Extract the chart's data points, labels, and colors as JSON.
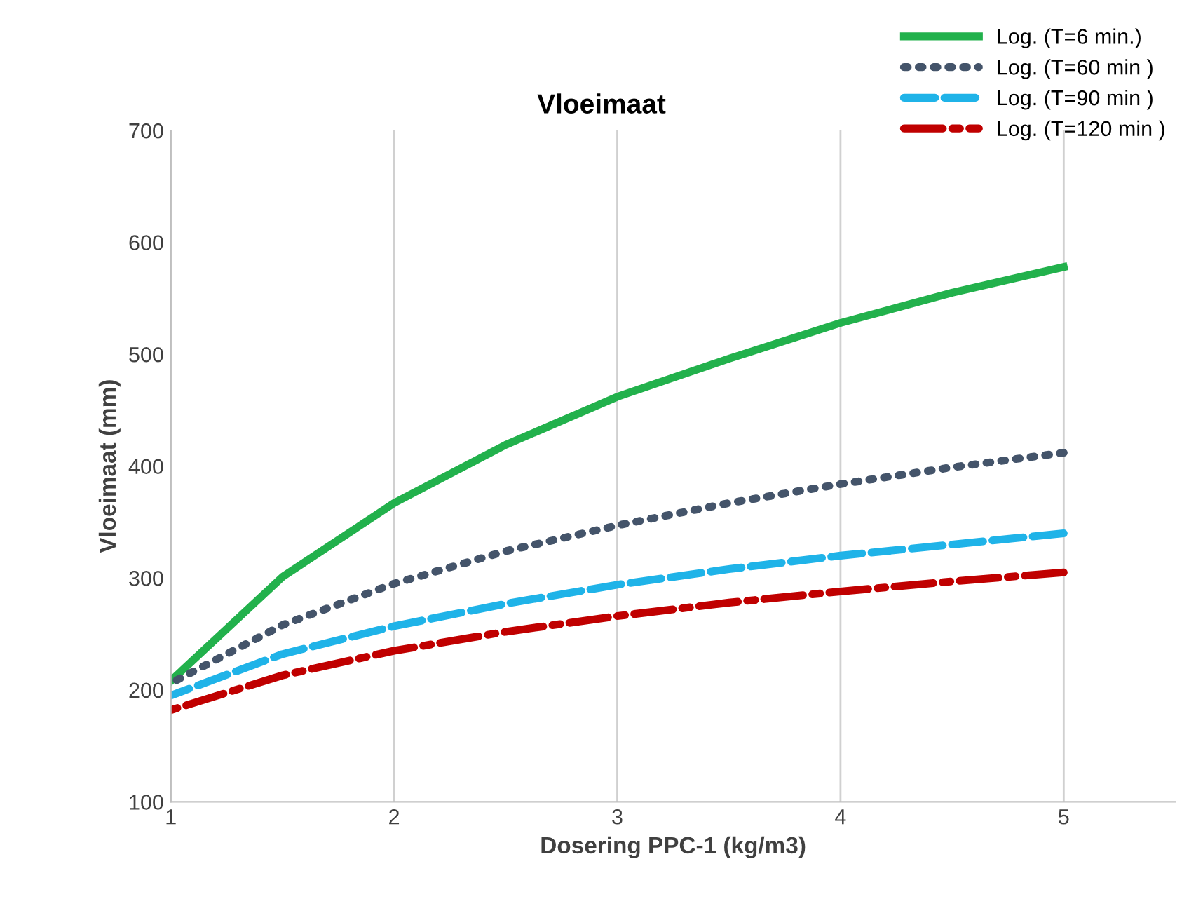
{
  "chart_data": {
    "type": "line",
    "title": "Vloeimaat",
    "xlabel": "Dosering PPC-1 (kg/m3)",
    "ylabel": "Vloeimaat (mm)",
    "x": [
      1,
      1.5,
      2,
      2.5,
      3,
      3.5,
      4,
      4.5,
      5
    ],
    "series": [
      {
        "name": "Log. (T=6 min.)",
        "color": "#22b14c",
        "line_style": "solid",
        "values": [
          208,
          301,
          367,
          419,
          462,
          496,
          528,
          555,
          578
        ]
      },
      {
        "name": "Log. (T=60 min )",
        "color": "#44546a",
        "line_style": "dotted",
        "values": [
          206,
          258,
          295,
          324,
          347,
          367,
          384,
          399,
          412
        ]
      },
      {
        "name": "Log. (T=90 min )",
        "color": "#1fb3e8",
        "line_style": "dashed",
        "values": [
          195,
          232,
          257,
          277,
          294,
          308,
          320,
          330,
          340
        ]
      },
      {
        "name": "Log. (T=120 min )",
        "color": "#c00000",
        "line_style": "dashdot",
        "values": [
          182,
          213,
          235,
          252,
          266,
          278,
          288,
          297,
          305
        ]
      }
    ],
    "xlim": [
      1,
      5.5
    ],
    "xticks": [
      1,
      2,
      3,
      4,
      5
    ],
    "ylim": [
      100,
      700
    ],
    "yticks": [
      100,
      200,
      300,
      400,
      500,
      600,
      700
    ],
    "grid": "x",
    "legend": "top right",
    "marker": "none"
  }
}
